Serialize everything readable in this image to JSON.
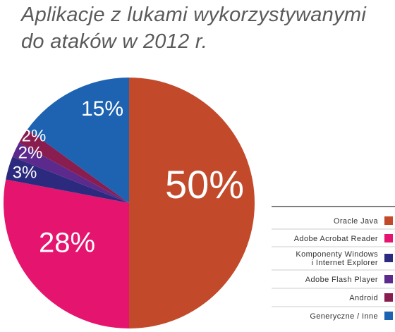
{
  "chart_data": {
    "type": "pie",
    "title": "Aplikacje z lukami wykorzystywanymi\ndo ataków w 2012 r.",
    "categories": [
      "Oracle Java",
      "Adobe Acrobat Reader",
      "Komponenty Windows\ni Internet Explorer",
      "Adobe Flash Player",
      "Android",
      "Generyczne / Inne"
    ],
    "values": [
      50,
      28,
      3,
      2,
      2,
      15
    ],
    "value_labels": [
      "50%",
      "28%",
      "3%",
      "2%",
      "2%",
      "15%"
    ],
    "colors": [
      "#c24a2b",
      "#e5156f",
      "#2b2a7e",
      "#5b2a8c",
      "#8a1d50",
      "#1d63b1"
    ]
  }
}
